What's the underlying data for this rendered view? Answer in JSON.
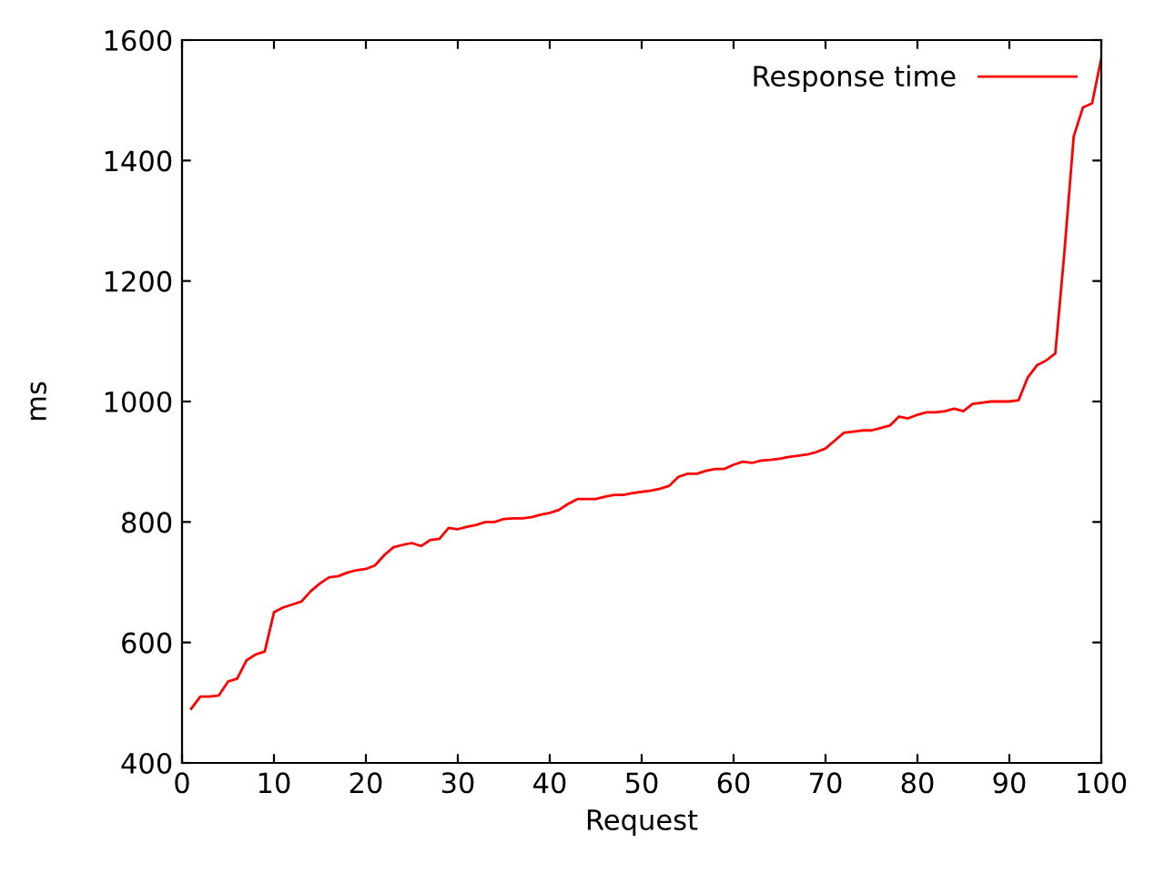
{
  "chart_data": {
    "type": "line",
    "xlabel": "Request",
    "ylabel": "ms",
    "x": [
      1,
      2,
      3,
      4,
      5,
      6,
      7,
      8,
      9,
      10,
      11,
      12,
      13,
      14,
      15,
      16,
      17,
      18,
      19,
      20,
      21,
      22,
      23,
      24,
      25,
      26,
      27,
      28,
      29,
      30,
      31,
      32,
      33,
      34,
      35,
      36,
      37,
      38,
      39,
      40,
      41,
      42,
      43,
      44,
      45,
      46,
      47,
      48,
      49,
      50,
      51,
      52,
      53,
      54,
      55,
      56,
      57,
      58,
      59,
      60,
      61,
      62,
      63,
      64,
      65,
      66,
      67,
      68,
      69,
      70,
      71,
      72,
      73,
      74,
      75,
      76,
      77,
      78,
      79,
      80,
      81,
      82,
      83,
      84,
      85,
      86,
      87,
      88,
      89,
      90,
      91,
      92,
      93,
      94,
      95,
      96,
      97,
      98,
      99,
      100
    ],
    "series": [
      {
        "name": "Response time",
        "color": "#ff0000",
        "values": [
          490,
          510,
          510,
          512,
          535,
          540,
          570,
          580,
          585,
          650,
          658,
          663,
          668,
          685,
          698,
          708,
          710,
          716,
          720,
          722,
          728,
          745,
          758,
          762,
          765,
          760,
          770,
          772,
          790,
          788,
          792,
          795,
          800,
          800,
          805,
          806,
          806,
          808,
          812,
          815,
          820,
          830,
          838,
          838,
          838,
          842,
          845,
          845,
          848,
          850,
          852,
          855,
          860,
          875,
          880,
          880,
          885,
          888,
          888,
          895,
          900,
          898,
          902,
          903,
          905,
          908,
          910,
          912,
          916,
          922,
          935,
          948,
          950,
          952,
          952,
          956,
          960,
          975,
          972,
          978,
          982,
          982,
          984,
          988,
          984,
          996,
          998,
          1000,
          1000,
          1000,
          1002,
          1040,
          1060,
          1068,
          1080,
          1250,
          1440,
          1488,
          1495,
          1570
        ]
      }
    ],
    "xlim": [
      0,
      100
    ],
    "xticks": [
      0,
      10,
      20,
      30,
      40,
      50,
      60,
      70,
      80,
      90,
      100
    ],
    "ylim": [
      400,
      1600
    ],
    "yticks": [
      400,
      600,
      800,
      1000,
      1200,
      1400,
      1600
    ],
    "grid": false,
    "legend": "top right",
    "marker": "none",
    "line_style": "solid"
  }
}
